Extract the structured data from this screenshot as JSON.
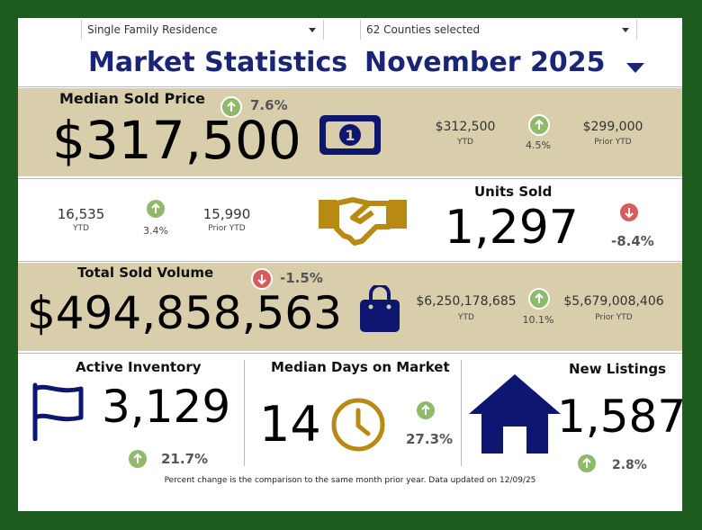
{
  "filters": {
    "property_type": "Single Family Residence",
    "counties": "62 Counties selected"
  },
  "header": {
    "title": "Market Statistics",
    "period": "November 2025"
  },
  "median_sold_price": {
    "label": "Median Sold Price",
    "value": "$317,500",
    "change": "7.6%",
    "direction": "up",
    "ytd": "$312,500",
    "ytd_label": "YTD",
    "ytd_change": "4.5%",
    "prior_ytd": "$299,000",
    "prior_ytd_label": "Prior YTD",
    "icon": "money-bill-icon"
  },
  "units_sold": {
    "label": "Units Sold",
    "value": "1,297",
    "change": "-8.4%",
    "direction": "down",
    "ytd": "16,535",
    "ytd_label": "YTD",
    "ytd_change": "3.4%",
    "prior_ytd": "15,990",
    "prior_ytd_label": "Prior YTD",
    "icon": "handshake-icon"
  },
  "total_sold_volume": {
    "label": "Total Sold Volume",
    "value": "$494,858,563",
    "change": "-1.5%",
    "direction": "down",
    "ytd": "$6,250,178,685",
    "ytd_label": "YTD",
    "ytd_change": "10.1%",
    "prior_ytd": "$5,679,008,406",
    "prior_ytd_label": "Prior YTD",
    "icon": "shopping-bag-icon"
  },
  "active_inventory": {
    "label": "Active Inventory",
    "value": "3,129",
    "change": "21.7%",
    "direction": "up",
    "icon": "flag-icon"
  },
  "median_days_on_market": {
    "label": "Median Days on Market",
    "value": "14",
    "change": "27.3%",
    "direction": "up",
    "icon": "clock-icon"
  },
  "new_listings": {
    "label": "New Listings",
    "value": "1,587",
    "change": "2.8%",
    "direction": "up",
    "icon": "house-icon"
  },
  "footnote": "Percent change is the comparison to the same month prior year. Data updated on 12/09/25",
  "colors": {
    "frame": "#1e5b1e",
    "band": "#d8ceac",
    "navy": "#0d1670",
    "gold": "#b88a14",
    "up": "#8fba6c",
    "down": "#d85c5c"
  }
}
